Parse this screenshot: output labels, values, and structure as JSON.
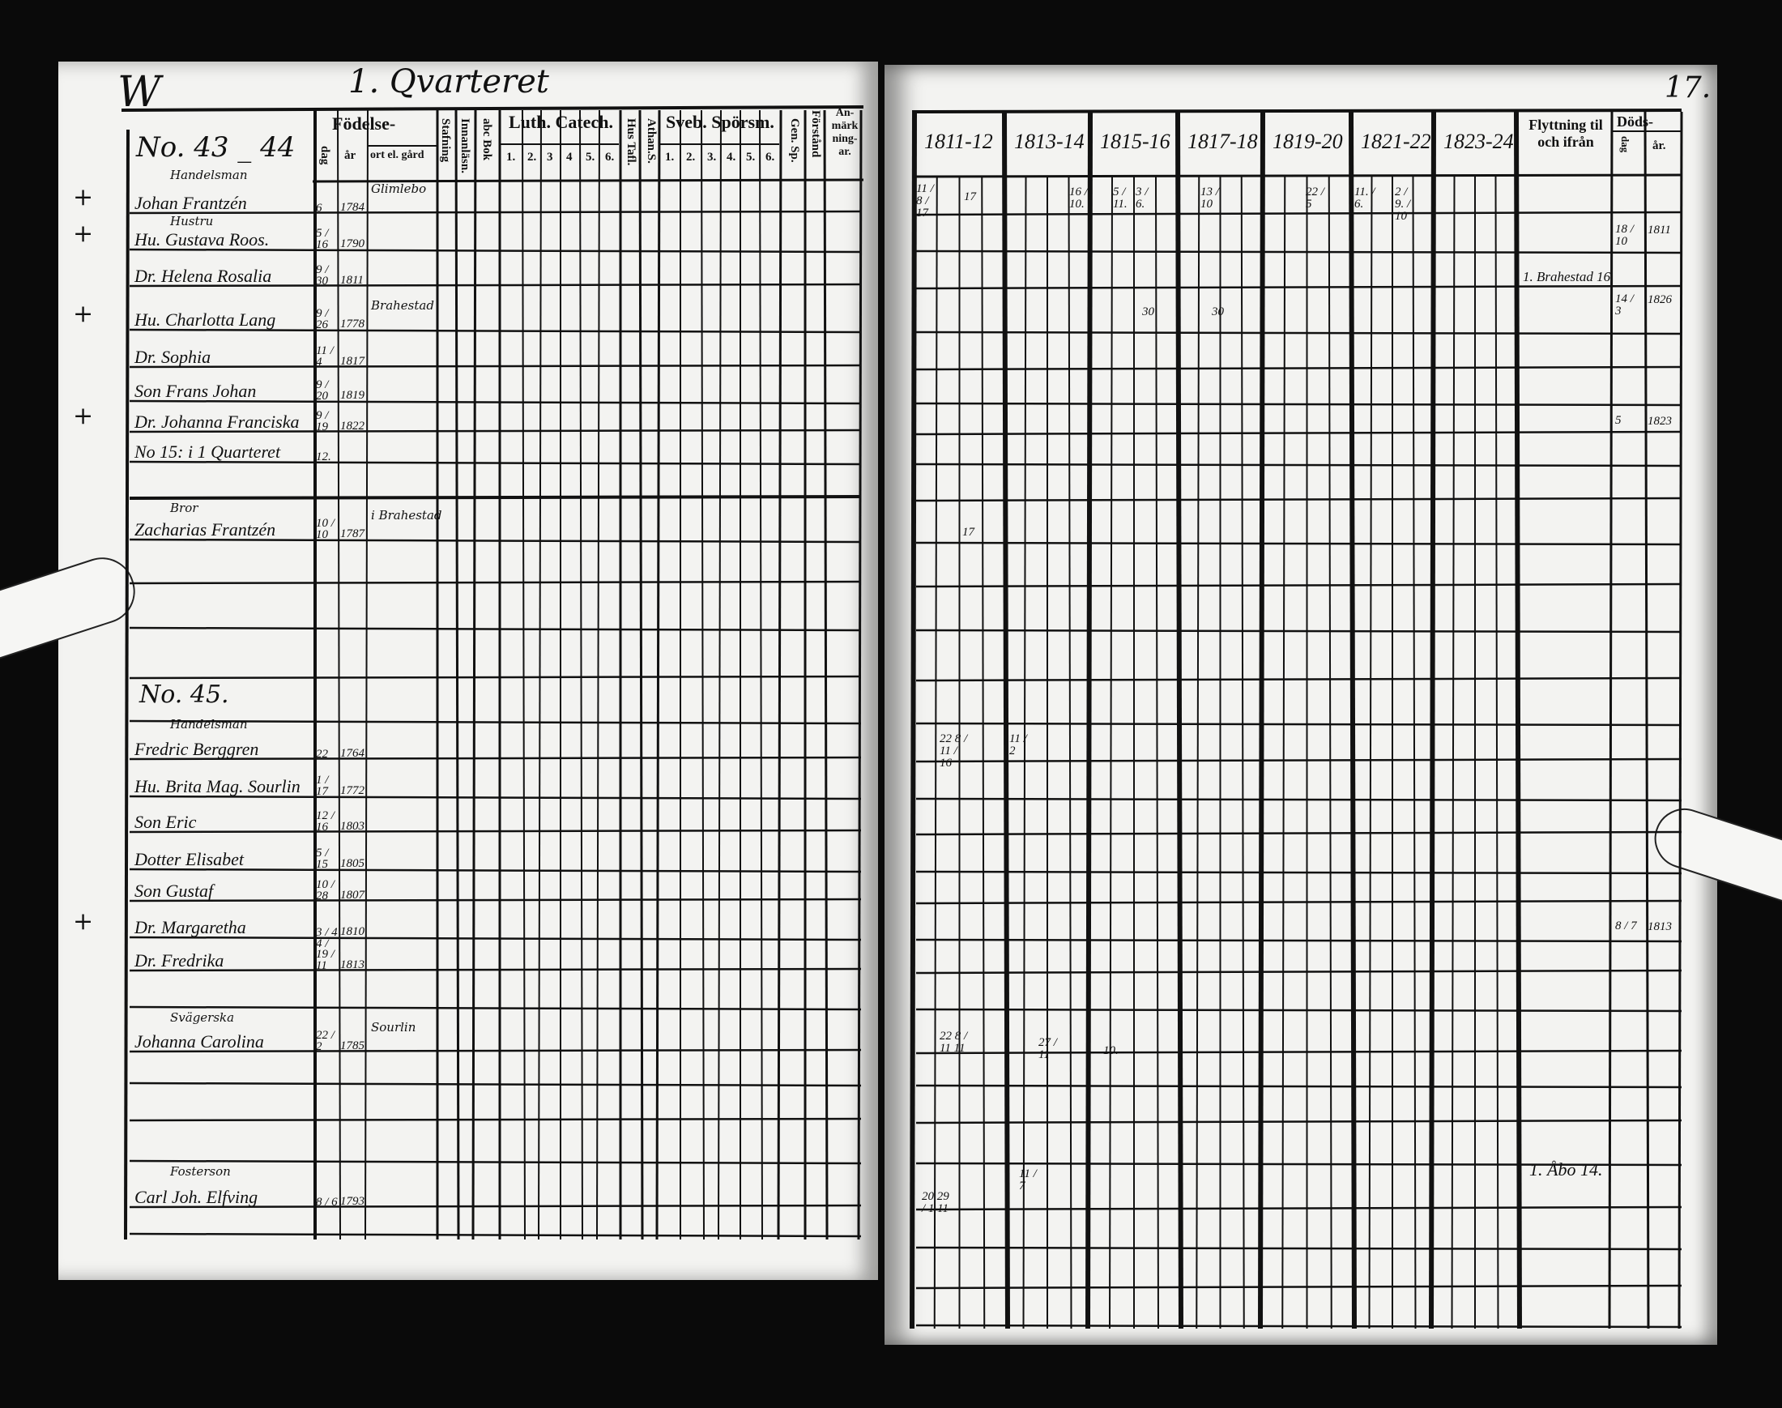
{
  "left_page": {
    "corner_mark": "W",
    "title": "1. Qvarteret",
    "headers": {
      "fodelse": "Födelse-",
      "dag": "dag",
      "ar": "år",
      "ort": "ort el. gård",
      "stafning": "Stafning",
      "innanlasn": "Innanläsn.",
      "abc_bok": "abc Bok",
      "luth_catech": "Luth. Catech.",
      "luth_subcols": [
        "1.",
        "2.",
        "3",
        "4",
        "5.",
        "6."
      ],
      "hus_tafl": "Hus Tafl.",
      "athan_s": "Athan.S.",
      "sveb_sporsm": "Sveb. Spörsm.",
      "sveb_subcols": [
        "1.",
        "2.",
        "3.",
        "4.",
        "5.",
        "6."
      ],
      "gen_sp": "Gen. Sp.",
      "forstand": "Förstånd",
      "anmarkningar": "An-märk ning-ar."
    },
    "household_1": "No. 43 _ 44",
    "household_2": "No. 45.",
    "entries": [
      {
        "label": "Handelsman",
        "name": "Johan Frantzén",
        "dag": "6",
        "ar": "1784",
        "ort": "Glimlebo",
        "mark": "+"
      },
      {
        "label": "Hustru",
        "name": "Hu. Gustava Roos.",
        "dag": "5 / 16",
        "ar": "1790",
        "mark": "+"
      },
      {
        "name": "Dr. Helena Rosalia",
        "dag": "9 / 30",
        "ar": "1811"
      },
      {
        "name": "Hu. Charlotta Lang",
        "dag": "9 / 26",
        "ar": "1778",
        "ort": "Brahestad",
        "mark": "+"
      },
      {
        "name": "Dr. Sophia",
        "dag": "11 / 4",
        "ar": "1817"
      },
      {
        "name": "Son Frans Johan",
        "dag": "9 / 20",
        "ar": "1819"
      },
      {
        "name": "Dr. Johanna Franciska",
        "dag": "9 / 19",
        "ar": "1822",
        "mark": "+"
      },
      {
        "name": "No 15: i 1 Quarteret",
        "dag": "12."
      },
      {
        "label": "Bror",
        "name": "Zacharias Frantzén",
        "dag": "10 / 10",
        "ar": "1787",
        "ort": "i Brahestad"
      },
      {
        "label": "Handelsman",
        "name": "Fredric Berggren",
        "dag": "22",
        "ar": "1764"
      },
      {
        "name": "Hu. Brita Mag. Sourlin",
        "dag": "1 / 17",
        "ar": "1772"
      },
      {
        "name": "Son Eric",
        "dag": "12 / 16",
        "ar": "1803"
      },
      {
        "name": "Dotter Elisabet",
        "dag": "5 / 15",
        "ar": "1805"
      },
      {
        "name": "Son Gustaf",
        "dag": "10 / 28",
        "ar": "1807"
      },
      {
        "name": "Dr. Margaretha",
        "dag": "3 / 4",
        "ar": "1810",
        "mark": "+"
      },
      {
        "name": "Dr. Fredrika",
        "dag": "4 / 19 / 11",
        "ar": "1813"
      },
      {
        "label": "Svägerska",
        "name": "Johanna Carolina",
        "dag": "22 / 2",
        "ar": "1785",
        "ort": "Sourlin"
      },
      {
        "label": "Fosterson",
        "name": "Carl Joh. Elfving",
        "dag": "8 / 6",
        "ar": "1793"
      }
    ]
  },
  "right_page": {
    "page_number": "17.",
    "year_columns": [
      "1811-12",
      "1813-14",
      "1815-16",
      "1817-18",
      "1819-20",
      "1821-22",
      "1823-24."
    ],
    "flyttning": "Flyttning til och ifrån",
    "dods": "Döds-",
    "dods_dag": "dag",
    "dods_ar": "år.",
    "notes": [
      {
        "text": "11 / 8 / 17"
      },
      {
        "text": "17"
      },
      {
        "text": "16 / 10."
      },
      {
        "text": "5 / 11."
      },
      {
        "text": "3 / 6."
      },
      {
        "text": "13 / 10"
      },
      {
        "text": "22 / 5"
      },
      {
        "text": "11. / 6."
      },
      {
        "text": "2 / 9. / 10"
      },
      {
        "text": "30"
      },
      {
        "text": "30"
      },
      {
        "text": "17"
      },
      {
        "text": "22 8 / 11 / 16"
      },
      {
        "text": "11 / 2"
      },
      {
        "text": "22 8 / 11 11"
      },
      {
        "text": "27 / 11"
      },
      {
        "text": "10."
      },
      {
        "text": "20 29 / 1 11"
      },
      {
        "text": "11 / 7"
      }
    ],
    "flyttning_entries": [
      "1. Brahestad 16",
      "1. Åbo 14."
    ],
    "death_entries": [
      {
        "dag": "18 / 10",
        "ar": "1811"
      },
      {
        "dag": "14 / 3",
        "ar": "1826"
      },
      {
        "dag": "5",
        "ar": "1823"
      },
      {
        "dag": "8 / 7",
        "ar": "1813"
      }
    ]
  },
  "colors": {
    "paper": "#f3f3f1",
    "ink": "#111111",
    "background": "#0a0a0a"
  }
}
